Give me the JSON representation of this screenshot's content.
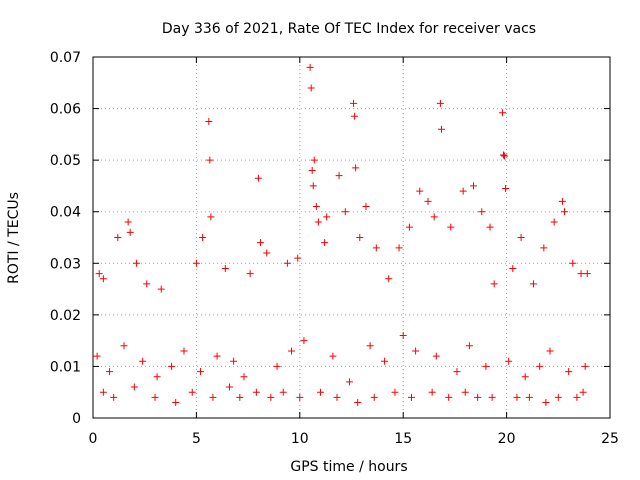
{
  "chart_data": {
    "type": "scatter",
    "title": "Day 336 of 2021, Rate Of TEC Index for receiver vacs",
    "xlabel": "GPS time / hours",
    "ylabel": "ROTI / TECUs",
    "xlim": [
      0,
      25
    ],
    "ylim": [
      0,
      0.07
    ],
    "xticks": [
      0,
      5,
      10,
      15,
      20,
      25
    ],
    "xtick_labels": [
      "0",
      "5",
      "10",
      "15",
      "20",
      "25"
    ],
    "yticks": [
      0,
      0.01,
      0.02,
      0.03,
      0.04,
      0.05,
      0.06,
      0.07
    ],
    "ytick_labels": [
      "0",
      "0.01",
      "0.02",
      "0.03",
      "0.04",
      "0.05",
      "0.06",
      "0.07"
    ],
    "grid": true,
    "marker": "+",
    "color": "#ff0000",
    "series": [
      {
        "x": [
          0.3,
          0.5,
          1.2,
          1.7,
          1.8,
          2.1,
          2.6,
          3.3,
          5.0,
          5.3,
          5.6,
          5.65,
          5.7,
          6.4,
          7.6,
          8.0,
          8.1,
          8.4,
          9.4,
          9.9,
          10.5,
          10.55,
          10.6,
          10.65,
          10.7,
          10.8,
          10.9,
          11.2,
          11.3,
          11.9,
          12.2,
          12.6,
          12.65,
          12.7,
          12.9,
          13.2,
          13.7,
          14.3,
          14.8,
          15.3,
          15.8,
          16.2,
          16.5,
          16.8,
          16.85,
          17.3,
          17.9,
          18.4,
          18.8,
          19.2,
          19.4,
          19.8,
          19.85,
          19.9,
          19.95,
          20.3,
          20.7,
          21.3,
          21.8,
          22.3,
          22.7,
          22.8,
          23.2,
          23.6,
          23.9,
          0.2,
          0.8,
          1.5,
          2.4,
          3.1,
          3.8,
          4.4,
          5.2,
          6.0,
          6.8,
          7.3,
          8.9,
          9.6,
          10.2,
          11.6,
          12.4,
          13.4,
          14.1,
          15.0,
          15.6,
          16.6,
          17.6,
          18.2,
          19.0,
          20.1,
          20.9,
          21.6,
          22.1,
          23.0,
          23.8,
          0.5,
          1.0,
          2.0,
          3.0,
          4.0,
          4.8,
          5.8,
          6.6,
          7.1,
          7.9,
          8.6,
          9.2,
          10.0,
          11.0,
          11.8,
          12.8,
          13.6,
          14.6,
          15.4,
          16.4,
          17.2,
          18.0,
          18.6,
          19.3,
          20.5,
          21.1,
          21.9,
          22.5,
          23.4,
          23.7
        ],
        "y": [
          0.028,
          0.027,
          0.035,
          0.038,
          0.036,
          0.03,
          0.026,
          0.025,
          0.03,
          0.035,
          0.0575,
          0.05,
          0.039,
          0.029,
          0.028,
          0.0465,
          0.034,
          0.032,
          0.03,
          0.031,
          0.068,
          0.064,
          0.048,
          0.045,
          0.05,
          0.041,
          0.038,
          0.034,
          0.039,
          0.047,
          0.04,
          0.061,
          0.0585,
          0.0485,
          0.035,
          0.041,
          0.033,
          0.027,
          0.033,
          0.037,
          0.044,
          0.042,
          0.039,
          0.061,
          0.056,
          0.037,
          0.044,
          0.045,
          0.04,
          0.037,
          0.026,
          0.0592,
          0.051,
          0.0508,
          0.0445,
          0.029,
          0.035,
          0.026,
          0.033,
          0.038,
          0.042,
          0.04,
          0.03,
          0.028,
          0.028,
          0.012,
          0.009,
          0.014,
          0.011,
          0.008,
          0.01,
          0.013,
          0.009,
          0.012,
          0.011,
          0.008,
          0.01,
          0.013,
          0.015,
          0.012,
          0.007,
          0.014,
          0.011,
          0.016,
          0.013,
          0.012,
          0.009,
          0.014,
          0.01,
          0.011,
          0.008,
          0.01,
          0.013,
          0.009,
          0.01,
          0.005,
          0.004,
          0.006,
          0.004,
          0.003,
          0.005,
          0.004,
          0.006,
          0.004,
          0.005,
          0.004,
          0.005,
          0.004,
          0.005,
          0.004,
          0.003,
          0.004,
          0.005,
          0.004,
          0.005,
          0.004,
          0.005,
          0.004,
          0.004,
          0.004,
          0.004,
          0.003,
          0.004,
          0.004,
          0.005
        ]
      }
    ]
  }
}
